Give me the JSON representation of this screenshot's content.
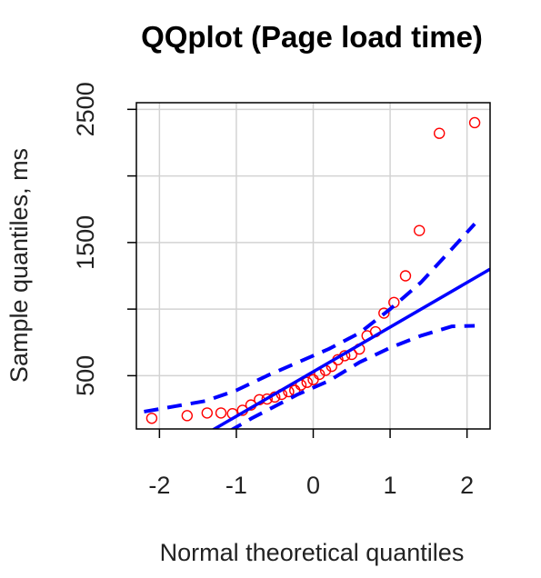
{
  "chart_data": {
    "type": "scatter",
    "title": "QQplot (Page load time)",
    "xlabel": "Normal theoretical quantiles",
    "ylabel": "Sample quantiles, ms",
    "xlim": [
      -2.3,
      2.3
    ],
    "ylim": [
      100,
      2550
    ],
    "x_ticks": [
      -2,
      -1,
      0,
      1,
      2
    ],
    "y_ticks": [
      500,
      1000,
      1500,
      2000,
      2500
    ],
    "y_tick_labels": [
      "500",
      "",
      "1500",
      "",
      "2500"
    ],
    "grid": true,
    "colors": {
      "points": "#ff0000",
      "lines": "#0000ff",
      "grid": "#d3d3d3",
      "frame": "#000000"
    },
    "series": [
      {
        "kind": "points",
        "points": [
          {
            "x": -2.1,
            "y": 180
          },
          {
            "x": -1.64,
            "y": 200
          },
          {
            "x": -1.38,
            "y": 220
          },
          {
            "x": -1.2,
            "y": 220
          },
          {
            "x": -1.05,
            "y": 215
          },
          {
            "x": -0.92,
            "y": 240
          },
          {
            "x": -0.81,
            "y": 280
          },
          {
            "x": -0.7,
            "y": 320
          },
          {
            "x": -0.6,
            "y": 325
          },
          {
            "x": -0.5,
            "y": 340
          },
          {
            "x": -0.41,
            "y": 360
          },
          {
            "x": -0.32,
            "y": 380
          },
          {
            "x": -0.24,
            "y": 390
          },
          {
            "x": -0.16,
            "y": 430
          },
          {
            "x": -0.08,
            "y": 450
          },
          {
            "x": 0.0,
            "y": 470
          },
          {
            "x": 0.08,
            "y": 510
          },
          {
            "x": 0.16,
            "y": 540
          },
          {
            "x": 0.24,
            "y": 570
          },
          {
            "x": 0.32,
            "y": 620
          },
          {
            "x": 0.41,
            "y": 650
          },
          {
            "x": 0.5,
            "y": 660
          },
          {
            "x": 0.6,
            "y": 700
          },
          {
            "x": 0.7,
            "y": 800
          },
          {
            "x": 0.81,
            "y": 830
          },
          {
            "x": 0.92,
            "y": 970
          },
          {
            "x": 1.05,
            "y": 1050
          },
          {
            "x": 1.2,
            "y": 1250
          },
          {
            "x": 1.38,
            "y": 1590
          },
          {
            "x": 1.64,
            "y": 2320
          },
          {
            "x": 2.1,
            "y": 2400
          }
        ]
      },
      {
        "kind": "reference-line",
        "line": [
          {
            "x": -2.3,
            "y": -240
          },
          {
            "x": 2.3,
            "y": 1300
          }
        ]
      },
      {
        "kind": "upper-envelope",
        "line": [
          {
            "x": -2.2,
            "y": 230
          },
          {
            "x": -1.8,
            "y": 270
          },
          {
            "x": -1.4,
            "y": 310
          },
          {
            "x": -1.0,
            "y": 390
          },
          {
            "x": -0.6,
            "y": 500
          },
          {
            "x": -0.2,
            "y": 600
          },
          {
            "x": 0.2,
            "y": 700
          },
          {
            "x": 0.6,
            "y": 820
          },
          {
            "x": 1.0,
            "y": 1000
          },
          {
            "x": 1.4,
            "y": 1200
          },
          {
            "x": 1.8,
            "y": 1450
          },
          {
            "x": 2.1,
            "y": 1640
          }
        ]
      },
      {
        "kind": "lower-envelope",
        "line": [
          {
            "x": -1.1,
            "y": 80
          },
          {
            "x": -0.8,
            "y": 180
          },
          {
            "x": -0.5,
            "y": 270
          },
          {
            "x": -0.2,
            "y": 360
          },
          {
            "x": 0.2,
            "y": 460
          },
          {
            "x": 0.6,
            "y": 600
          },
          {
            "x": 1.0,
            "y": 710
          },
          {
            "x": 1.4,
            "y": 800
          },
          {
            "x": 1.8,
            "y": 870
          },
          {
            "x": 2.1,
            "y": 875
          }
        ]
      }
    ]
  }
}
